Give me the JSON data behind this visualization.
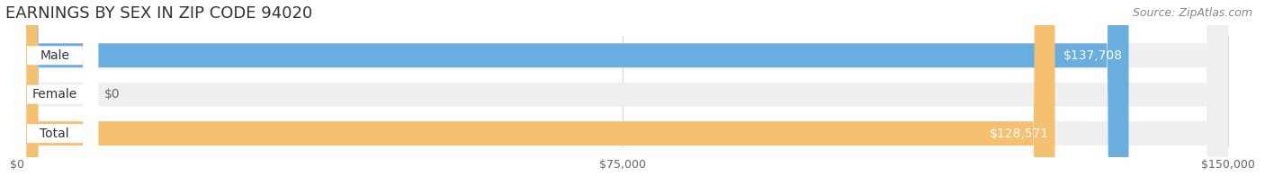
{
  "title": "EARNINGS BY SEX IN ZIP CODE 94020",
  "source": "Source: ZipAtlas.com",
  "categories": [
    "Male",
    "Female",
    "Total"
  ],
  "values": [
    137708,
    0,
    128571
  ],
  "max_value": 150000,
  "bar_colors": [
    "#6aaee0",
    "#f4a8c0",
    "#f5c070"
  ],
  "bar_bg_color": "#efefef",
  "value_labels": [
    "$137,708",
    "$0",
    "$128,571"
  ],
  "value_label_colors": [
    "#ffffff",
    "#666666",
    "#ffffff"
  ],
  "x_ticks": [
    0,
    75000,
    150000
  ],
  "x_tick_labels": [
    "$0",
    "$75,000",
    "$150,000"
  ],
  "title_fontsize": 13,
  "source_fontsize": 9,
  "cat_fontsize": 10,
  "value_fontsize": 10,
  "background_color": "#ffffff",
  "pill_color": "#ffffff",
  "cat_text_color": "#333333",
  "grid_color": "#d8d8d8",
  "tick_label_color": "#666666"
}
